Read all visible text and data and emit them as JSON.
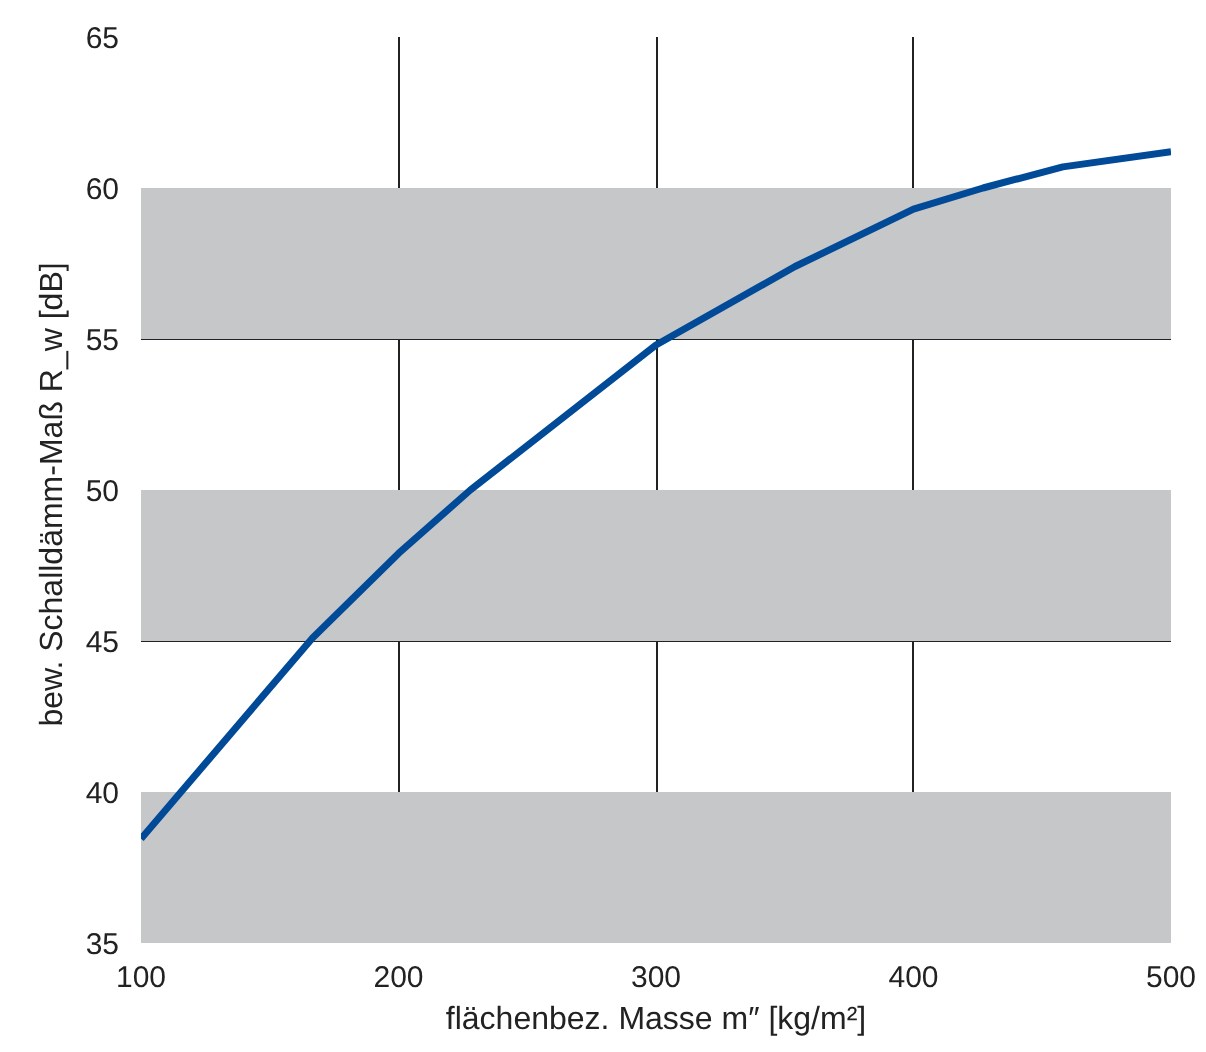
{
  "chart_data": {
    "type": "line",
    "xlabel": "flächenbez. Masse m″ [kg/m²]",
    "ylabel": "bew. Schalldämm-Maß  R_w [dB]",
    "x": [
      100,
      166.6,
      200,
      227.9,
      300,
      354,
      400,
      427,
      458,
      500
    ],
    "series": [
      {
        "color": "#004a98",
        "values": [
          38.45,
          45.1,
          47.9,
          50,
          54.8,
          57.4,
          59.3,
          60,
          60.7,
          61.2
        ]
      }
    ],
    "xlim": [
      100,
      500
    ],
    "ylim": [
      35,
      65
    ],
    "xticks": [
      100,
      200,
      300,
      400,
      500
    ],
    "yticks": [
      35,
      40,
      45,
      50,
      55,
      60,
      65
    ],
    "grid": true,
    "bands": [
      {
        "axis": "y",
        "from": 35,
        "to": 40,
        "color": "#c6c7c9"
      },
      {
        "axis": "y",
        "from": 45,
        "to": 50,
        "color": "#c6c7c9"
      },
      {
        "axis": "y",
        "from": 55,
        "to": 60,
        "color": "#c6c7c9"
      }
    ]
  }
}
